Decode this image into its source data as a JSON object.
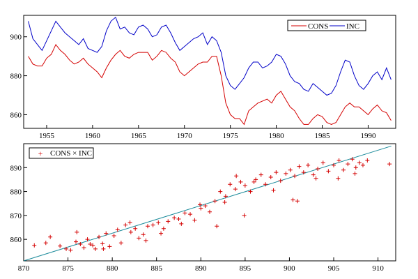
{
  "chart_data": [
    {
      "type": "line",
      "title": "",
      "xlabel": "",
      "ylabel": "",
      "xlim": [
        1952.5,
        1993.0
      ],
      "ylim": [
        853,
        911
      ],
      "x_ticks": [
        1955,
        1960,
        1965,
        1970,
        1975,
        1980,
        1985,
        1990
      ],
      "y_ticks": [
        860,
        880,
        900
      ],
      "legend": {
        "position": "top-right",
        "entries": [
          "CONS",
          "INC"
        ]
      },
      "series": [
        {
          "name": "CONS",
          "color": "#d40000",
          "x": [
            1953.0,
            1953.5,
            1954.0,
            1954.5,
            1955.0,
            1955.5,
            1956.0,
            1956.5,
            1957.0,
            1957.5,
            1958.0,
            1958.5,
            1959.0,
            1959.5,
            1960.0,
            1960.5,
            1961.0,
            1961.5,
            1962.0,
            1962.5,
            1963.0,
            1963.5,
            1964.0,
            1964.5,
            1965.0,
            1965.5,
            1966.0,
            1966.5,
            1967.0,
            1967.5,
            1968.0,
            1968.5,
            1969.0,
            1969.5,
            1970.0,
            1970.5,
            1971.0,
            1971.5,
            1972.0,
            1972.5,
            1973.0,
            1973.5,
            1974.0,
            1974.5,
            1975.0,
            1975.5,
            1976.0,
            1976.5,
            1977.0,
            1977.5,
            1978.0,
            1978.5,
            1979.0,
            1979.5,
            1980.0,
            1980.5,
            1981.0,
            1981.5,
            1982.0,
            1982.5,
            1983.0,
            1983.5,
            1984.0,
            1984.5,
            1985.0,
            1985.5,
            1986.0,
            1986.5,
            1987.0,
            1987.5,
            1988.0,
            1988.5,
            1989.0,
            1989.5,
            1990.0,
            1990.5,
            1991.0,
            1991.5,
            1992.0,
            1992.5
          ],
          "values": [
            890,
            886,
            885,
            885,
            889,
            891,
            896,
            893,
            891,
            888,
            886,
            887,
            889,
            886,
            884,
            882,
            879,
            884,
            888,
            891,
            893,
            890,
            889,
            891,
            892,
            892,
            892,
            888,
            890,
            893,
            892,
            889,
            887,
            882,
            880,
            882,
            884,
            886,
            887,
            887,
            890,
            890,
            880,
            866,
            860,
            858,
            858,
            855,
            862,
            864,
            866,
            867,
            868,
            866,
            870,
            872,
            868,
            864,
            862,
            858,
            855,
            855,
            858,
            860,
            859,
            856,
            855,
            856,
            860,
            864,
            866,
            864,
            864,
            862,
            860,
            863,
            865,
            862,
            861,
            857
          ]
        },
        {
          "name": "INC",
          "color": "#0000c8",
          "x": [
            1953.0,
            1953.5,
            1954.0,
            1954.5,
            1955.0,
            1955.5,
            1956.0,
            1956.5,
            1957.0,
            1957.5,
            1958.0,
            1958.5,
            1959.0,
            1959.5,
            1960.0,
            1960.5,
            1961.0,
            1961.5,
            1962.0,
            1962.5,
            1963.0,
            1963.5,
            1964.0,
            1964.5,
            1965.0,
            1965.5,
            1966.0,
            1966.5,
            1967.0,
            1967.5,
            1968.0,
            1968.5,
            1969.0,
            1969.5,
            1970.0,
            1970.5,
            1971.0,
            1971.5,
            1972.0,
            1972.5,
            1973.0,
            1973.5,
            1974.0,
            1974.5,
            1975.0,
            1975.5,
            1976.0,
            1976.5,
            1977.0,
            1977.5,
            1978.0,
            1978.5,
            1979.0,
            1979.5,
            1980.0,
            1980.5,
            1981.0,
            1981.5,
            1982.0,
            1982.5,
            1983.0,
            1983.5,
            1984.0,
            1984.5,
            1985.0,
            1985.5,
            1986.0,
            1986.5,
            1987.0,
            1987.5,
            1988.0,
            1988.5,
            1989.0,
            1989.5,
            1990.0,
            1990.5,
            1991.0,
            1991.5,
            1992.0,
            1992.5
          ],
          "values": [
            908,
            899,
            896,
            893,
            898,
            903,
            908,
            905,
            902,
            900,
            898,
            896,
            899,
            894,
            893,
            892,
            895,
            903,
            908,
            910,
            904,
            905,
            902,
            901,
            905,
            906,
            904,
            900,
            901,
            905,
            906,
            902,
            897,
            893,
            895,
            897,
            899,
            900,
            902,
            896,
            900,
            898,
            892,
            880,
            875,
            873,
            876,
            879,
            884,
            887,
            887,
            884,
            885,
            887,
            891,
            890,
            886,
            880,
            877,
            876,
            873,
            872,
            876,
            874,
            872,
            870,
            871,
            875,
            882,
            888,
            887,
            880,
            875,
            873,
            876,
            880,
            882,
            878,
            884,
            878
          ]
        }
      ]
    },
    {
      "type": "scatter",
      "title": "",
      "xlabel": "",
      "ylabel": "",
      "xlim": [
        870,
        912
      ],
      "ylim": [
        851,
        900
      ],
      "x_ticks": [
        870,
        875,
        880,
        885,
        890,
        895,
        900,
        905,
        910
      ],
      "y_ticks": [
        860,
        870,
        880,
        890
      ],
      "legend": {
        "position": "top-left",
        "entries": [
          "CONS × INC"
        ]
      },
      "series": [
        {
          "name": "CONS × INC",
          "color": "#d40000",
          "x": [
            871.2,
            872.5,
            874.1,
            874.8,
            875.3,
            875.9,
            876.4,
            876.8,
            877.2,
            877.8,
            878.1,
            878.5,
            878.9,
            879.3,
            879.7,
            880.2,
            880.6,
            881.0,
            881.5,
            882.1,
            882.6,
            883.0,
            883.5,
            884.0,
            884.6,
            885.2,
            885.8,
            886.3,
            887.0,
            887.5,
            888.2,
            888.8,
            889.3,
            890.0,
            890.5,
            891.0,
            891.6,
            892.2,
            892.8,
            893.3,
            893.9,
            894.5,
            895.0,
            895.6,
            896.2,
            896.8,
            897.3,
            897.9,
            898.5,
            899.0,
            899.6,
            900.1,
            900.6,
            901.1,
            901.6,
            902.1,
            902.7,
            903.2,
            903.8,
            904.4,
            905.0,
            905.6,
            906.1,
            906.6,
            907.1,
            907.5,
            907.9,
            908.3,
            908.8,
            911.3,
            873.0,
            876.0,
            879.0,
            882.0,
            885.5,
            887.8,
            889.9,
            892.7,
            894.0,
            896.0,
            898.2,
            900.4,
            903.0,
            905.5,
            907.4,
            891.8,
            894.9,
            900.9,
            877.5,
            883.8
          ],
          "y": [
            857.5,
            858.5,
            857.2,
            856.0,
            855.5,
            859.0,
            858.0,
            856.5,
            860.0,
            857.5,
            856.0,
            861.0,
            858.2,
            862.5,
            857.0,
            861.5,
            864.0,
            858.5,
            866.0,
            863.0,
            864.5,
            860.5,
            862.0,
            865.5,
            866.0,
            867.0,
            864.5,
            867.5,
            869.0,
            868.5,
            871.0,
            870.5,
            868.0,
            873.0,
            874.0,
            871.5,
            876.0,
            880.0,
            878.0,
            883.0,
            881.0,
            884.0,
            882.5,
            880.0,
            885.0,
            887.0,
            883.0,
            886.0,
            888.0,
            884.5,
            887.5,
            889.0,
            886.5,
            890.5,
            888.0,
            891.0,
            887.0,
            889.5,
            892.0,
            888.5,
            891.0,
            893.0,
            889.0,
            891.5,
            893.5,
            890.0,
            892.0,
            891.0,
            893.0,
            891.5,
            861.0,
            863.0,
            856.0,
            867.0,
            862.5,
            866.5,
            874.5,
            875.5,
            886.5,
            884.0,
            880.5,
            876.5,
            885.5,
            885.5,
            887.5,
            865.5,
            870.0,
            876.0,
            858.0,
            859.5
          ]
        }
      ],
      "fit_line": {
        "color": "#1a8a9a",
        "x": [
          870,
          911.5
        ],
        "y": [
          851.0,
          899.0
        ]
      }
    }
  ]
}
